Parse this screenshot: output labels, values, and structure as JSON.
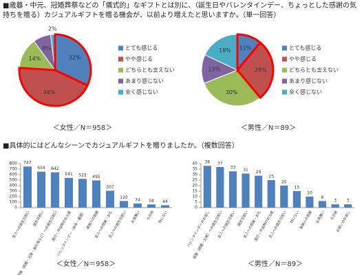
{
  "headings": [
    "■歳暮・中元、冠婚葬祭などの「儀式的」なギフトとは別に、（誕生日やバレンタインデー、ちょっとした感謝の気持ちを贈る）カジュアルギフトを贈る機会が、以前より増えたと思いますか。（単一回答）",
    "■具体的にはどんなシーンでカジュアルギフトを贈りましたか。（複数回答）"
  ],
  "chart_data": [
    {
      "type": "pie",
      "subtitle": "＜女性／N＝958＞",
      "categories": [
        "とても感じる",
        "やや感じる",
        "どちらとも言えない",
        "あまり感じない",
        "全く感じない"
      ],
      "values": [
        32,
        44,
        14,
        8,
        2
      ],
      "value_labels": [
        "32%",
        "44%",
        "14%",
        "8%",
        "2%"
      ],
      "colors": [
        "#4f81bd",
        "#c0504d",
        "#9bbb59",
        "#8064a2",
        "#4bacc6"
      ],
      "outline": {
        "color": "#ff0000",
        "slices": [
          0,
          1
        ]
      }
    },
    {
      "type": "pie",
      "subtitle": "＜男性／N＝89＞",
      "categories": [
        "とても感じる",
        "やや感じる",
        "どちらとも言えない",
        "あまり感じない",
        "全く感じない"
      ],
      "values": [
        11,
        28,
        30,
        13,
        18
      ],
      "value_labels": [
        "11%",
        "28%",
        "30%",
        "13%",
        "18%"
      ],
      "colors": [
        "#4f81bd",
        "#c0504d",
        "#9bbb59",
        "#8064a2",
        "#4bacc6"
      ],
      "outline": {
        "color": "#ff0000",
        "slices": [
          0,
          1
        ]
      }
    },
    {
      "type": "bar",
      "subtitle": "＜女性／N＝958＞",
      "categories": [
        "友人への誕生日祝い",
        "誕生日祝い",
        "家族（両親・兄弟・祖父母など）への誕生日祝い",
        "旅行・外出時のお土産",
        "バレンタインデー（本命・義理）",
        "家族への感謝",
        "友人への感謝・お礼",
        "恋人への誕生日祝い",
        "お見舞い",
        "その他",
        "特にない"
      ],
      "values": [
        747,
        654,
        642,
        541,
        522,
        495,
        307,
        120,
        74,
        58,
        44
      ],
      "color": "#4f81bd",
      "ylim": [
        0,
        800
      ],
      "yticks": [
        0,
        100,
        200,
        300,
        400,
        500,
        600,
        700,
        800
      ]
    },
    {
      "type": "bar",
      "subtitle": "＜男性／N＝89＞",
      "categories": [
        "バレンタインデーのお返し",
        "家族（両親・兄弟）への誕生日祝い",
        "友人への誕生日祝い",
        "誕生日祝い",
        "友人への感謝・お礼",
        "旅行・外出時のお土産",
        "恋人への誕生日祝い",
        "特にない",
        "家族への感謝",
        "お見舞い",
        "その他",
        "お祝いのお返し"
      ],
      "values": [
        38,
        37,
        33,
        31,
        29,
        25,
        20,
        15,
        10,
        6,
        3,
        3
      ],
      "color": "#4f81bd",
      "ylim": [
        0,
        40
      ],
      "yticks": [
        0,
        5,
        10,
        15,
        20,
        25,
        30,
        35,
        40
      ]
    }
  ]
}
